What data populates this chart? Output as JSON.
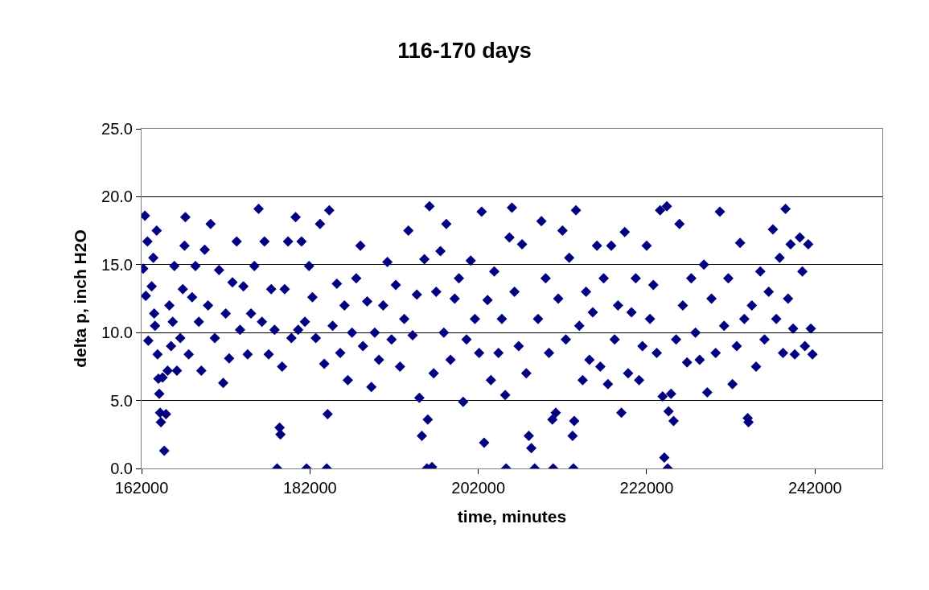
{
  "chart_data": {
    "type": "scatter",
    "title": "116-170 days",
    "xlabel": "time, minutes",
    "ylabel": "delta p, inch H2O",
    "xlim": [
      162000,
      250000
    ],
    "xticks": [
      162000,
      182000,
      202000,
      222000,
      242000
    ],
    "ylim": [
      0,
      25
    ],
    "yticks": [
      {
        "value": 0,
        "label": "0.0"
      },
      {
        "value": 5,
        "label": "5.0"
      },
      {
        "value": 10,
        "label": "10.0"
      },
      {
        "value": 15,
        "label": "15.0"
      },
      {
        "value": 20,
        "label": "20.0"
      },
      {
        "value": 25,
        "label": "25.0"
      }
    ],
    "grid": "y",
    "marker": "diamond",
    "series": [
      {
        "color": "#000080",
        "x": [
          162200,
          162400,
          162500,
          162700,
          162800,
          163200,
          163400,
          163500,
          163600,
          163800,
          163900,
          164000,
          164100,
          164200,
          164300,
          164500,
          164700,
          164900,
          165100,
          165300,
          165500,
          165700,
          165900,
          166200,
          166600,
          166900,
          167100,
          167200,
          167600,
          168000,
          168400,
          168800,
          169100,
          169500,
          169900,
          170200,
          170700,
          171200,
          171700,
          172000,
          172400,
          172800,
          173300,
          173700,
          174100,
          174600,
          175000,
          175400,
          175900,
          176300,
          176600,
          177100,
          177400,
          177800,
          178100,
          178400,
          178500,
          178700,
          179000,
          179400,
          179800,
          180300,
          180600,
          181000,
          181400,
          181600,
          181900,
          182300,
          182700,
          183200,
          183700,
          184000,
          184100,
          184300,
          184700,
          185200,
          185600,
          186100,
          186500,
          187000,
          187500,
          188000,
          188300,
          188800,
          189300,
          189700,
          190200,
          190700,
          191200,
          191700,
          192200,
          192700,
          193200,
          193700,
          194200,
          194700,
          195000,
          195300,
          195600,
          195900,
          196000,
          196200,
          196500,
          196700,
          197000,
          197500,
          197900,
          198200,
          198700,
          199200,
          199700,
          200200,
          200600,
          201100,
          201600,
          202100,
          202400,
          202700,
          203100,
          203500,
          203900,
          204400,
          204800,
          205200,
          205300,
          205700,
          206000,
          206300,
          206800,
          207200,
          207700,
          208000,
          208300,
          208700,
          209100,
          209500,
          210000,
          210400,
          210800,
          210900,
          211200,
          211500,
          212000,
          212400,
          212800,
          213200,
          213300,
          213400,
          213600,
          214000,
          214400,
          214800,
          215200,
          215600,
          216100,
          216500,
          216900,
          217400,
          217800,
          218200,
          218600,
          219000,
          219400,
          219800,
          220200,
          220700,
          221100,
          221500,
          222000,
          222400,
          222800,
          223200,
          223600,
          223900,
          224100,
          224400,
          224500,
          224600,
          224900,
          225200,
          225500,
          225900,
          226300,
          226800,
          227300,
          227800,
          228300,
          228800,
          229200,
          229700,
          230200,
          230700,
          231200,
          231700,
          232200,
          232700,
          233100,
          233600,
          234000,
          234100,
          234500,
          235000,
          235500,
          236000,
          236500,
          237000,
          237400,
          237800,
          238200,
          238500,
          238800,
          239100,
          239400,
          239600,
          240200,
          240500,
          240800,
          241200,
          241500,
          241700
        ],
        "values": [
          14.7,
          18.6,
          12.7,
          16.7,
          9.4,
          13.4,
          15.5,
          11.4,
          10.5,
          17.5,
          8.4,
          6.6,
          5.5,
          4.1,
          3.4,
          6.7,
          1.3,
          4.0,
          7.2,
          12.0,
          9.0,
          10.8,
          14.9,
          7.2,
          9.6,
          13.2,
          16.4,
          18.5,
          8.4,
          12.6,
          14.9,
          10.8,
          7.2,
          16.1,
          12.0,
          18.0,
          9.6,
          14.6,
          6.3,
          11.4,
          8.1,
          13.7,
          16.7,
          10.2,
          13.4,
          8.4,
          11.4,
          14.9,
          19.1,
          10.8,
          16.7,
          8.4,
          13.2,
          10.2,
          0.0,
          3.0,
          2.5,
          7.5,
          13.2,
          16.7,
          9.6,
          18.5,
          10.2,
          16.7,
          10.8,
          0.0,
          14.9,
          12.6,
          9.6,
          18.0,
          7.7,
          0.0,
          4.0,
          19.0,
          10.5,
          13.6,
          8.5,
          12.0,
          6.5,
          10.0,
          14.0,
          16.4,
          9.0,
          12.3,
          6.0,
          10.0,
          8.0,
          12.0,
          15.2,
          9.5,
          13.5,
          7.5,
          11.0,
          17.5,
          9.8,
          12.8,
          5.2,
          2.4,
          15.4,
          0.0,
          3.6,
          19.3,
          0.1,
          7.0,
          13.0,
          16.0,
          10.0,
          18.0,
          8.0,
          12.5,
          14.0,
          4.9,
          9.5,
          15.3,
          11.0,
          8.5,
          18.9,
          1.9,
          12.4,
          6.5,
          14.5,
          8.5,
          11.0,
          5.4,
          0.0,
          17.0,
          19.2,
          13.0,
          9.0,
          16.5,
          7.0,
          2.4,
          1.5,
          0.0,
          11.0,
          18.2,
          14.0,
          8.5,
          3.6,
          0.0,
          4.1,
          12.5,
          17.5,
          9.5,
          15.5,
          2.4,
          0.0,
          3.5,
          19.0,
          10.5,
          6.5,
          13.0,
          8.0,
          11.5,
          16.4,
          7.5,
          14.0,
          6.2,
          16.4,
          9.5,
          12.0,
          4.1,
          17.4,
          7.0,
          11.5,
          14.0,
          6.5,
          9.0,
          16.4,
          11.0,
          13.5,
          8.5,
          19.0,
          5.3,
          0.8,
          19.3,
          0.0,
          4.2,
          5.5,
          3.5,
          9.5,
          18.0,
          12.0,
          7.8,
          14.0,
          10.0,
          8.0,
          15.0,
          5.6,
          12.5,
          8.5,
          18.9,
          10.5,
          14.0,
          6.2,
          9.0,
          16.6,
          11.0,
          3.7,
          3.4,
          12.0,
          7.5,
          14.5,
          9.5,
          13.0,
          17.6,
          11.0,
          15.5,
          8.5,
          19.1,
          12.5,
          16.5,
          10.3,
          8.4,
          17.0,
          14.5,
          9.0,
          16.5,
          10.3,
          8.4
        ]
      }
    ]
  }
}
